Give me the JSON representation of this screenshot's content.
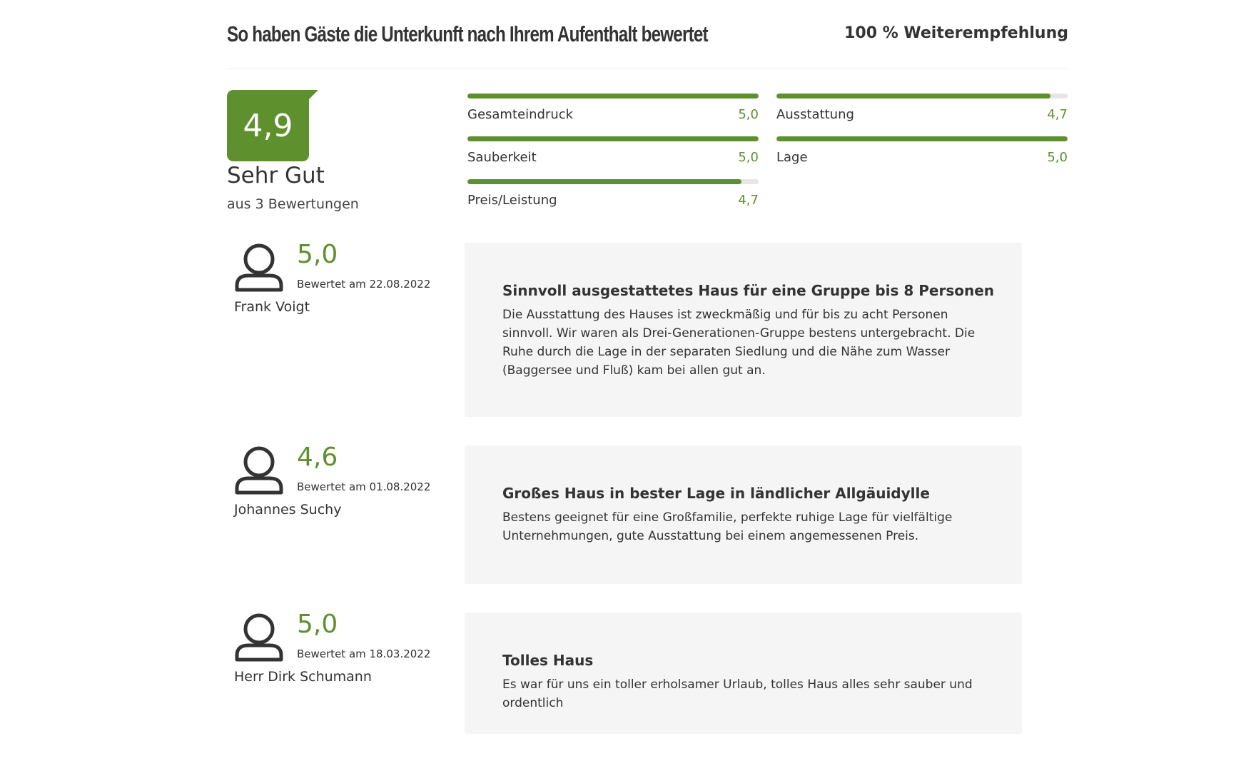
{
  "header": {
    "title": "So haben Gäste die Unterkunft nach Ihrem Aufenthalt bewertet",
    "recommendation": "100 % Weiterempfehlung"
  },
  "overall": {
    "score": "4,9",
    "label": "Sehr Gut",
    "count_text": "aus 3 Bewertungen"
  },
  "categories": [
    {
      "name": "Gesamteindruck",
      "value": "5,0",
      "fraction": 1.0
    },
    {
      "name": "Ausstattung",
      "value": "4,7",
      "fraction": 0.94
    },
    {
      "name": "Sauberkeit",
      "value": "5,0",
      "fraction": 1.0
    },
    {
      "name": "Lage",
      "value": "5,0",
      "fraction": 1.0
    },
    {
      "name": "Preis/Leistung",
      "value": "4,7",
      "fraction": 0.94
    }
  ],
  "reviews": [
    {
      "score": "5,0",
      "date": "Bewertet am 22.08.2022",
      "author": "Frank Voigt",
      "title": "Sinnvoll ausgestattetes Haus für eine Gruppe bis 8 Personen",
      "text": "Die Ausstattung des Hauses ist zweckmäßig und für bis zu acht Personen sinnvoll. Wir waren als Drei-Generationen-Gruppe bestens untergebracht. Die Ruhe durch die Lage in der separaten Siedlung und die Nähe zum Wasser (Baggersee und Fluß) kam bei allen gut an."
    },
    {
      "score": "4,6",
      "date": "Bewertet am 01.08.2022",
      "author": "Johannes Suchy",
      "title": "Großes Haus in bester Lage in ländlicher Allgäuidylle",
      "text": "Bestens geeignet für eine Großfamilie, perfekte ruhige Lage für vielfältige Unternehmungen, gute Ausstattung bei einem angemessenen Preis."
    },
    {
      "score": "5,0",
      "date": "Bewertet am 18.03.2022",
      "author": "Herr Dirk Schumann",
      "title": "Tolles Haus",
      "text": "Es war für uns ein toller erholsamer Urlaub, tolles Haus alles sehr sauber und ordentlich"
    }
  ],
  "colors": {
    "accent": "#5e912d",
    "card_background": "#f5f5f5",
    "text": "#333333"
  },
  "icons": {
    "avatar": "user-icon"
  }
}
